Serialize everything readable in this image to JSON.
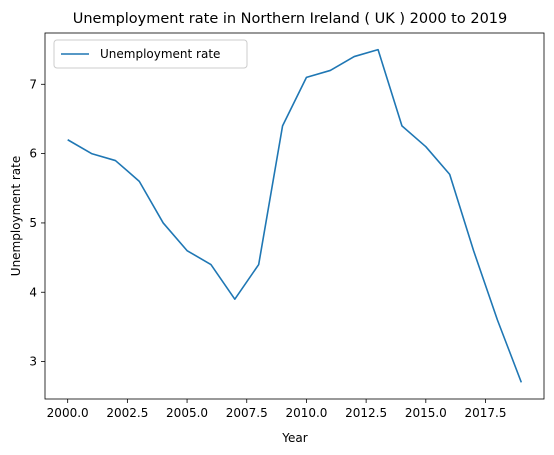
{
  "chart_data": {
    "type": "line",
    "title": "Unemployment rate in Northern Ireland ( UK ) 2000 to 2019",
    "xlabel": "Year",
    "ylabel": "Unemployment rate",
    "xlim": [
      1999.05,
      2019.95
    ],
    "ylim": [
      2.46,
      7.74
    ],
    "x_ticks": [
      2000,
      2002.5,
      2005,
      2007.5,
      2010,
      2012.5,
      2015,
      2017.5
    ],
    "x_tick_labels": [
      "2000.0",
      "2002.5",
      "2005.0",
      "2007.5",
      "2010.0",
      "2012.5",
      "2015.0",
      "2017.5"
    ],
    "y_ticks": [
      3,
      4,
      5,
      6,
      7
    ],
    "y_tick_labels": [
      "3",
      "4",
      "5",
      "6",
      "7"
    ],
    "grid": false,
    "legend_position": "top-left",
    "series": [
      {
        "name": "Unemployment rate",
        "color": "#1f77b4",
        "x": [
          2000,
          2001,
          2002,
          2003,
          2004,
          2005,
          2006,
          2007,
          2008,
          2009,
          2010,
          2011,
          2012,
          2013,
          2014,
          2015,
          2016,
          2017,
          2018,
          2019
        ],
        "y": [
          6.2,
          6.0,
          5.9,
          5.6,
          5.0,
          4.6,
          4.4,
          3.9,
          4.4,
          6.4,
          7.1,
          7.2,
          7.4,
          7.5,
          6.4,
          6.1,
          5.7,
          4.6,
          3.6,
          2.7
        ]
      }
    ]
  }
}
